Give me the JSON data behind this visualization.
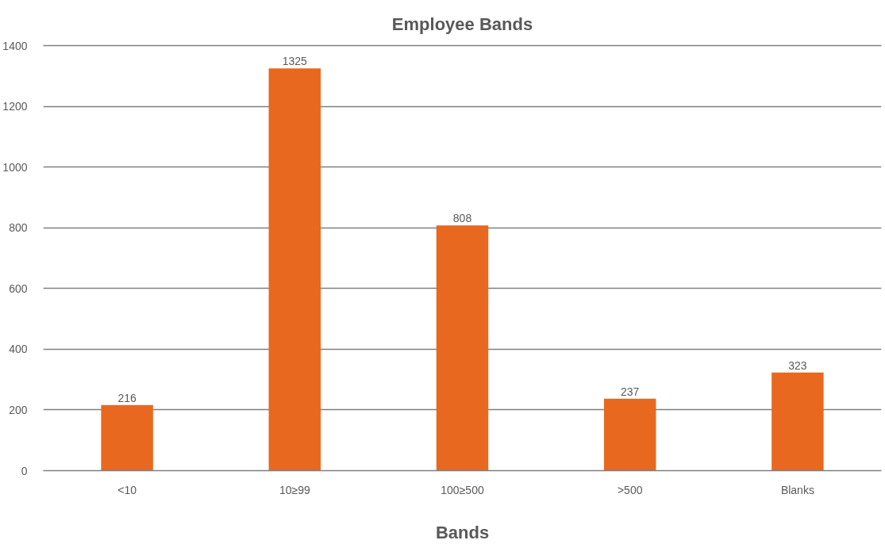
{
  "chart_data": {
    "type": "bar",
    "title": "Employee Bands",
    "xlabel": "Bands",
    "categories": [
      "<10",
      "10≥99",
      "100≥500",
      ">500",
      "Blanks"
    ],
    "values": [
      216,
      1325,
      808,
      237,
      323
    ],
    "color": "#e8681f",
    "ylim": [
      0,
      1400
    ],
    "yticks": [
      0,
      200,
      400,
      600,
      800,
      1000,
      1200,
      1400
    ],
    "grid": "y",
    "data_labels": true
  }
}
